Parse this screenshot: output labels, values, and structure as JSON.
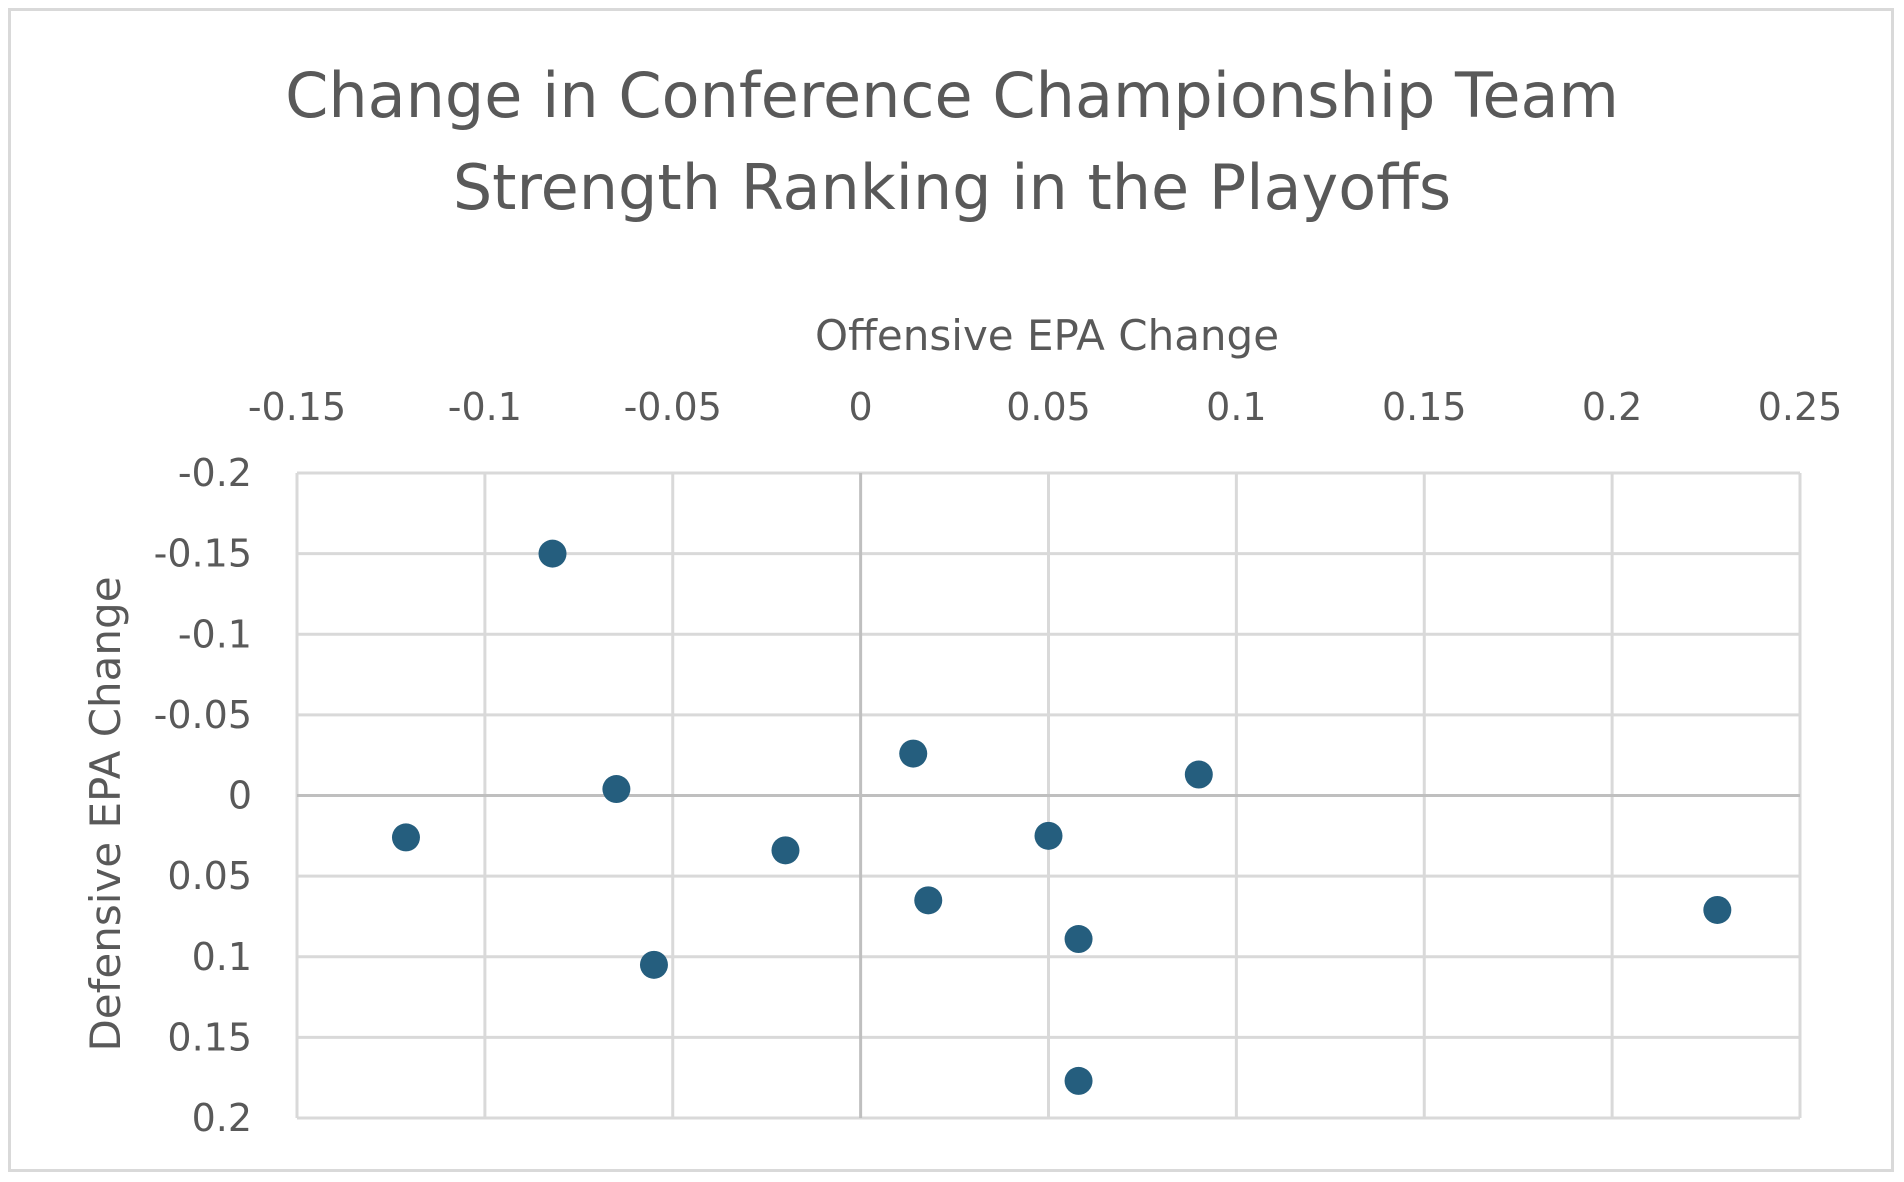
{
  "chart_data": {
    "type": "scatter",
    "title_lines": [
      "Change in Conference Championship Team",
      "Strength Ranking in the Playoffs"
    ],
    "xlabel": "Offensive EPA Change",
    "ylabel": "Defensive EPA Change",
    "xlim": [
      -0.15,
      0.25
    ],
    "ylim": [
      -0.2,
      0.2
    ],
    "y_axis_reversed": true,
    "x_axis_position": "top",
    "grid": true,
    "x_ticks": [
      "-0.15",
      "-0.1",
      "-0.05",
      "0",
      "0.05",
      "0.1",
      "0.15",
      "0.2",
      "0.25"
    ],
    "y_ticks": [
      "-0.2",
      "-0.15",
      "-0.1",
      "-0.05",
      "0",
      "0.05",
      "0.1",
      "0.15",
      "0.2"
    ],
    "marker_color": "#255e7e",
    "points": [
      {
        "x": -0.082,
        "y": -0.15
      },
      {
        "x": -0.121,
        "y": 0.026
      },
      {
        "x": -0.065,
        "y": -0.004
      },
      {
        "x": -0.02,
        "y": 0.034
      },
      {
        "x": -0.055,
        "y": 0.105
      },
      {
        "x": 0.014,
        "y": -0.026
      },
      {
        "x": 0.018,
        "y": 0.065
      },
      {
        "x": 0.05,
        "y": 0.025
      },
      {
        "x": 0.058,
        "y": 0.089
      },
      {
        "x": 0.058,
        "y": 0.177
      },
      {
        "x": 0.09,
        "y": -0.013
      },
      {
        "x": 0.228,
        "y": 0.071
      }
    ]
  }
}
